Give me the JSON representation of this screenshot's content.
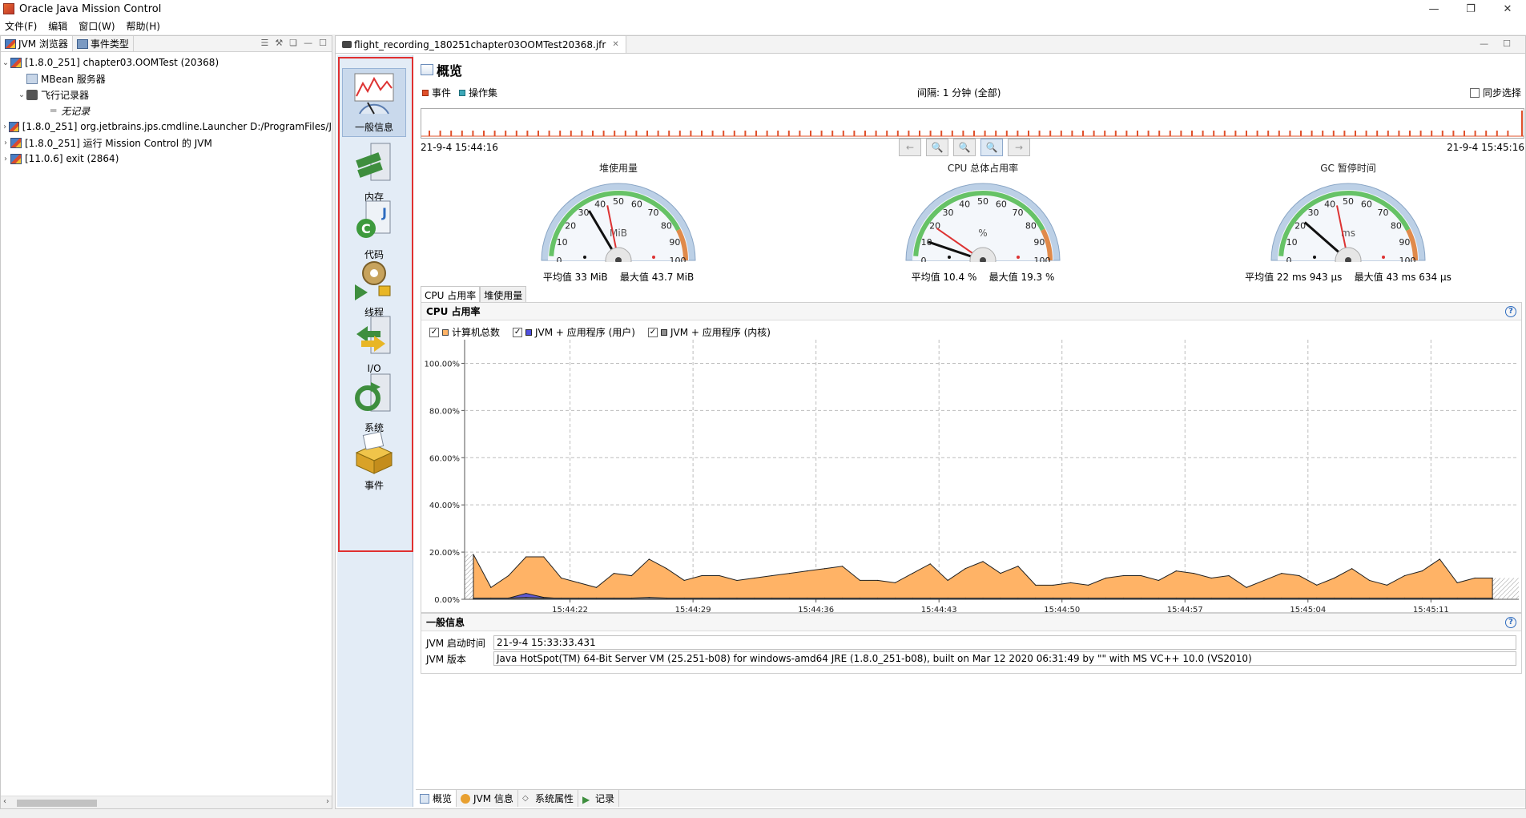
{
  "window": {
    "title": "Oracle Java Mission Control",
    "controls": [
      "—",
      "❐",
      "✕"
    ]
  },
  "menu": [
    "文件(F)",
    "编辑",
    "窗口(W)",
    "帮助(H)"
  ],
  "left_panel": {
    "tabs": [
      "JVM 浏览器",
      "事件类型"
    ],
    "tree": [
      {
        "label": "[1.8.0_251] chapter03.OOMTest (20368)",
        "level": 0,
        "expanded": true
      },
      {
        "label": "MBean 服务器",
        "level": 1
      },
      {
        "label": "飞行记录器",
        "level": 1,
        "expanded": true
      },
      {
        "label": "无记录",
        "level": 2
      },
      {
        "label": "[1.8.0_251] org.jetbrains.jps.cmdline.Launcher D:/ProgramFiles/J",
        "level": 0,
        "expanded": false
      },
      {
        "label": "[1.8.0_251] 运行 Mission Control 的 JVM",
        "level": 0,
        "expanded": false
      },
      {
        "label": "[11.0.6] exit (2864)",
        "level": 0,
        "expanded": false
      }
    ]
  },
  "editor": {
    "tab": "flight_recording_180251chapter03OOMTest20368.jfr",
    "nav": [
      "一般信息",
      "内存",
      "代码",
      "线程",
      "I/O",
      "系统",
      "事件"
    ],
    "page_title": "概览",
    "timeline": {
      "legend": [
        "事件",
        "操作集"
      ],
      "interval": "间隔: 1 分钟 (全部)",
      "sync_label": "同步选择",
      "start": "21-9-4 15:44:16",
      "end": "21-9-4 15:45:16",
      "buttons": [
        "←",
        "🔍",
        "🔍",
        "🔍",
        "→"
      ]
    },
    "gauges": [
      {
        "title": "堆使用量",
        "unit": "MiB",
        "avg_label": "平均值 33 MiB",
        "max_label": "最大值 43.7 MiB",
        "value": 33,
        "max": 43.7
      },
      {
        "title": "CPU 总体占用率",
        "unit": "%",
        "avg_label": "平均值 10.4 %",
        "max_label": "最大值 19.3 %",
        "value": 10.4,
        "max": 19.3
      },
      {
        "title": "GC 暂停时间",
        "unit": "ms",
        "avg_label": "平均值 22 ms 943 μs",
        "max_label": "最大值 43 ms 634 μs",
        "value": 22.9,
        "max": 43.6
      }
    ],
    "gauge_ticks": [
      "0",
      "10",
      "20",
      "30",
      "40",
      "50",
      "60",
      "70",
      "80",
      "90",
      "100"
    ],
    "subtabs": [
      "CPU 占用率",
      "堆使用量"
    ],
    "cpu_section": {
      "title": "CPU 占用率",
      "help": "?",
      "legend": [
        "计算机总数",
        "JVM + 应用程序 (用户)",
        "JVM + 应用程序 (内核)"
      ],
      "colors": {
        "total": "#ffb366",
        "user": "#5050e0",
        "kernel": "#909090"
      }
    },
    "info_section": {
      "title": "一般信息",
      "help": "?",
      "rows": [
        {
          "key": "JVM 启动时间",
          "value": "21-9-4 15:33:33.431"
        },
        {
          "key": "JVM 版本",
          "value": "Java HotSpot(TM) 64-Bit Server VM (25.251-b08) for windows-amd64 JRE (1.8.0_251-b08), built on Mar 12 2020 06:31:49 by \"\" with MS VC++ 10.0 (VS2010)"
        }
      ]
    },
    "bottom_tabs": [
      "概览",
      "JVM 信息",
      "系统属性",
      "记录"
    ]
  },
  "chart_data": {
    "type": "area",
    "title": "CPU 占用率",
    "ylim": [
      0,
      110
    ],
    "y_ticks": [
      "0.00%",
      "20.00%",
      "40.00%",
      "60.00%",
      "80.00%",
      "100.00%"
    ],
    "x_ticks": [
      "15:44:22",
      "15:44:29",
      "15:44:36",
      "15:44:43",
      "15:44:50",
      "15:44:57",
      "15:45:04",
      "15:45:11"
    ],
    "x_range_seconds": [
      0,
      60
    ],
    "x": [
      0.5,
      1.5,
      2.5,
      3.5,
      4.5,
      5.5,
      6.5,
      7.5,
      8.5,
      9.5,
      10.5,
      11.5,
      12.5,
      13.5,
      14.5,
      15.5,
      16.5,
      17.5,
      18.5,
      19.5,
      20.5,
      21.5,
      22.5,
      23.5,
      24.5,
      25.5,
      26.5,
      27.5,
      28.5,
      29.5,
      30.5,
      31.5,
      32.5,
      33.5,
      34.5,
      35.5,
      36.5,
      37.5,
      38.5,
      39.5,
      40.5,
      41.5,
      42.5,
      43.5,
      44.5,
      45.5,
      46.5,
      47.5,
      48.5,
      49.5,
      50.5,
      51.5,
      52.5,
      53.5,
      54.5,
      55.5,
      56.5,
      57.5,
      58.5
    ],
    "series": [
      {
        "name": "计算机总数",
        "values": [
          19,
          5,
          10,
          18,
          18,
          9,
          7,
          5,
          11,
          10,
          17,
          13,
          8,
          10,
          10,
          8,
          9,
          10,
          11,
          12,
          13,
          14,
          8,
          8,
          7,
          11,
          15,
          8,
          13,
          16,
          11,
          14,
          6,
          6,
          7,
          6,
          9,
          10,
          10,
          8,
          12,
          11,
          9,
          10,
          5,
          8,
          11,
          10,
          6,
          9,
          13,
          8,
          6,
          10,
          12,
          17,
          7,
          9,
          9
        ]
      },
      {
        "name": "JVM + 应用程序 (用户)",
        "values": [
          0.3,
          0.3,
          0.5,
          2.5,
          0.8,
          0.3,
          0.3,
          0.3,
          0.3,
          0.3,
          0.5,
          0.3,
          0.3,
          0.3,
          0.3,
          0.3,
          0.3,
          0.3,
          0.3,
          0.3,
          0.3,
          0.3,
          0.3,
          0.3,
          0.3,
          0.3,
          0.3,
          0.3,
          0.3,
          0.3,
          0.3,
          0.3,
          0.3,
          0.3,
          0.3,
          0.3,
          0.3,
          0.3,
          0.3,
          0.3,
          0.3,
          0.3,
          0.3,
          0.3,
          0.3,
          0.3,
          0.3,
          0.3,
          0.3,
          0.3,
          0.3,
          0.3,
          0.3,
          0.3,
          0.3,
          0.3,
          0.3,
          0.3,
          0.3
        ]
      },
      {
        "name": "JVM + 应用程序 (内核)",
        "values": [
          0.5,
          0.5,
          0.5,
          0.8,
          0.5,
          0.5,
          0.5,
          0.5,
          0.5,
          0.5,
          0.8,
          0.5,
          0.5,
          0.5,
          0.5,
          0.5,
          0.5,
          0.5,
          0.5,
          0.5,
          0.5,
          0.5,
          0.5,
          0.5,
          0.5,
          0.5,
          0.5,
          0.5,
          0.5,
          0.5,
          0.5,
          0.5,
          0.5,
          0.5,
          0.5,
          0.5,
          0.5,
          0.5,
          0.5,
          0.5,
          0.5,
          0.5,
          0.5,
          0.5,
          0.5,
          0.5,
          0.5,
          0.5,
          0.5,
          0.5,
          0.5,
          0.5,
          0.5,
          0.5,
          0.5,
          0.5,
          0.5,
          0.5,
          0.5
        ]
      }
    ],
    "grid": true,
    "legend_position": "top-left"
  }
}
